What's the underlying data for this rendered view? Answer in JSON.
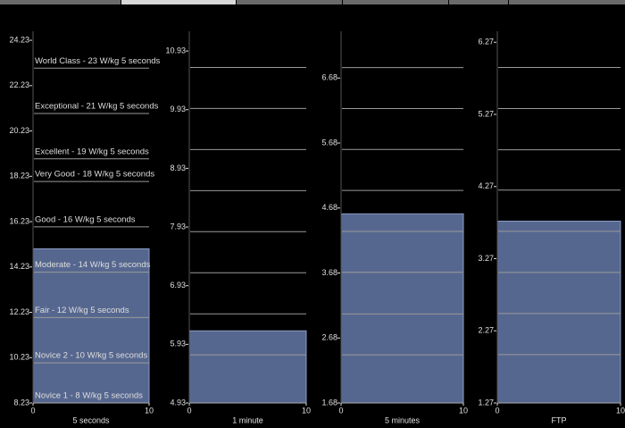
{
  "chart_data": [
    {
      "type": "bar",
      "categories": [
        "5 seconds"
      ],
      "values": [
        15.03
      ],
      "color": "#56678f",
      "ylim": [
        8.23,
        24.43
      ],
      "yticks": [
        8.23,
        10.23,
        12.23,
        14.23,
        16.23,
        18.23,
        20.23,
        22.23,
        24.23
      ],
      "xlim": [
        0,
        10
      ],
      "xticks": [
        0,
        10
      ],
      "levels": [
        {
          "value": 23,
          "label": "World Class - 23 W/kg 5 seconds"
        },
        {
          "value": 21,
          "label": "Exceptional - 21 W/kg 5 seconds"
        },
        {
          "value": 19,
          "label": "Excellent - 19 W/kg 5 seconds"
        },
        {
          "value": 18,
          "label": "Very Good - 18 W/kg 5 seconds"
        },
        {
          "value": 16,
          "label": "Good - 16 W/kg 5 seconds"
        },
        {
          "value": 14,
          "label": "Moderate - 14 W/kg 5 seconds"
        },
        {
          "value": 12,
          "label": "Fair - 12 W/kg 5 seconds"
        },
        {
          "value": 10,
          "label": "Novice 2 - 10 W/kg 5 seconds"
        },
        {
          "value": 8,
          "label": "Novice 1 - 8 W/kg 5 seconds"
        }
      ]
    },
    {
      "type": "bar",
      "categories": [
        "1 minute"
      ],
      "values": [
        6.16
      ],
      "color": "#56678f",
      "ylim": [
        4.93,
        11.19
      ],
      "yticks": [
        4.93,
        5.93,
        6.93,
        7.93,
        8.93,
        9.93,
        10.93
      ],
      "xlim": [
        0,
        10
      ],
      "xticks": [
        0,
        10
      ],
      "levels": [
        10.65,
        9.95,
        9.25,
        8.55,
        7.85,
        7.15,
        6.45,
        5.75
      ]
    },
    {
      "type": "bar",
      "categories": [
        "5 minutes"
      ],
      "values": [
        4.59
      ],
      "color": "#56678f",
      "ylim": [
        1.68,
        7.33
      ],
      "yticks": [
        1.68,
        2.68,
        3.68,
        4.68,
        5.68,
        6.68
      ],
      "xlim": [
        0,
        10
      ],
      "xticks": [
        0,
        10
      ],
      "levels": [
        6.84,
        6.21,
        5.58,
        4.95,
        4.32,
        3.69,
        3.05,
        2.42
      ]
    },
    {
      "type": "bar",
      "categories": [
        "FTP"
      ],
      "values": [
        3.79
      ],
      "color": "#56678f",
      "ylim": [
        1.27,
        6.36
      ],
      "yticks": [
        1.27,
        2.27,
        3.27,
        4.27,
        5.27,
        6.27
      ],
      "xlim": [
        0,
        10
      ],
      "xticks": [
        0,
        10
      ],
      "levels": [
        5.92,
        5.35,
        4.78,
        4.22,
        3.65,
        3.08,
        2.51,
        1.94
      ]
    }
  ]
}
